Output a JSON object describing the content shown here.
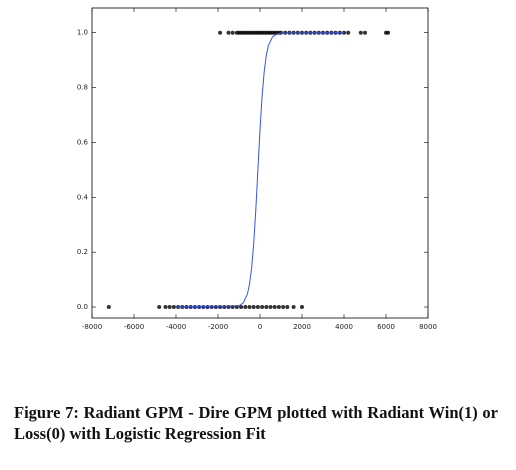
{
  "chart_data": {
    "type": "scatter",
    "xlim": [
      -8000,
      8000
    ],
    "ylim": [
      -0.04,
      1.09
    ],
    "xticks": [
      -8000,
      -6000,
      -4000,
      -2000,
      0,
      2000,
      4000,
      6000,
      8000
    ],
    "yticks": [
      {
        "value": 0,
        "label": "0.0"
      },
      0.2,
      0.4,
      0.6,
      0.8,
      {
        "value": 1,
        "label": "1.0"
      }
    ],
    "series": [
      {
        "color": "#000000",
        "x": [
          -1900,
          -1500,
          -1300,
          -1100,
          -1000,
          -900,
          -800,
          -700,
          -600,
          -500,
          -400,
          -300,
          -200,
          -100,
          0,
          100,
          200,
          300,
          400,
          500,
          600,
          700,
          800,
          900,
          1000,
          1200,
          1400,
          1600,
          1800,
          2000,
          2200,
          2400,
          2600,
          2800,
          3000,
          3200,
          3400,
          3600,
          3800,
          4000,
          4200,
          4800,
          5000,
          6000,
          6100
        ],
        "values": [
          1,
          1,
          1,
          1,
          1,
          1,
          1,
          1,
          1,
          1,
          1,
          1,
          1,
          1,
          1,
          1,
          1,
          1,
          1,
          1,
          1,
          1,
          1,
          1,
          1,
          1,
          1,
          1,
          1,
          1,
          1,
          1,
          1,
          1,
          1,
          1,
          1,
          1,
          1,
          1,
          1,
          1,
          1,
          1,
          1
        ]
      },
      {
        "color": "#000000",
        "x": [
          -7200,
          -4800,
          -4500,
          -4300,
          -4100,
          -3900,
          -3700,
          -3500,
          -3300,
          -3100,
          -2900,
          -2700,
          -2500,
          -2300,
          -2100,
          -1900,
          -1700,
          -1500,
          -1300,
          -1100,
          -900,
          -700,
          -500,
          -300,
          -100,
          100,
          300,
          500,
          700,
          900,
          1100,
          1300,
          1600,
          2000
        ],
        "values": [
          0,
          0,
          0,
          0,
          0,
          0,
          0,
          0,
          0,
          0,
          0,
          0,
          0,
          0,
          0,
          0,
          0,
          0,
          0,
          0,
          0,
          0,
          0,
          0,
          0,
          0,
          0,
          0,
          0,
          0,
          0,
          0,
          0,
          0
        ]
      }
    ],
    "fit": {
      "color": "#3355ee",
      "x": [
        -4000,
        -1000,
        -800,
        -600,
        -500,
        -400,
        -300,
        -200,
        -100,
        0,
        100,
        200,
        300,
        400,
        600,
        800,
        1000,
        4000
      ],
      "values": [
        0,
        0.0045,
        0.015,
        0.047,
        0.083,
        0.142,
        0.231,
        0.354,
        0.5,
        0.646,
        0.769,
        0.858,
        0.917,
        0.953,
        0.985,
        0.995,
        0.999,
        1
      ]
    }
  },
  "caption": "Figure 7: Radiant GPM - Dire GPM plotted with Radiant Win(1) or Loss(0) with Logistic Regression Fit"
}
